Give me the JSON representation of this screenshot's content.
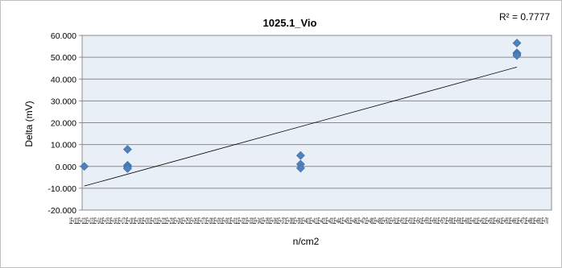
{
  "chart_data": {
    "type": "scatter",
    "title": "1025.1_Vio",
    "xlabel": "n/cm2",
    "ylabel": "Delta (mV)",
    "ylim": [
      -20,
      60
    ],
    "y_ticks": [
      "-20.000",
      "-10.000",
      "0.000",
      "10.000",
      "20.000",
      "30.000",
      "40.000",
      "50.000",
      "60.000"
    ],
    "x_tick_labels": "1E+111E+121E+131E+141E+151E+161E+171E+181E+191E+201E+211E+221E+231E+241E+251E+261E+271E+281E+291E+301E+311E+321E+331E+341E+351E+361E+371E+381E+391E+401E+411E+421E+431E+441E+451E+461E+471E+481E+491E+501E+511E+521E+531E+541E+551E+561E+571E+581E+591E+601E+611E+621E+631E+641E+651E+661E+671E+681E+691E+70",
    "grid": true,
    "points": [
      {
        "x": 0,
        "y": 0
      },
      {
        "x": 1.0,
        "y": 7.8
      },
      {
        "x": 1.0,
        "y": 0.5
      },
      {
        "x": 1.0,
        "y": -0.3
      },
      {
        "x": 1.0,
        "y": -1.0
      },
      {
        "x": 5.0,
        "y": 5.0
      },
      {
        "x": 5.0,
        "y": 1.0
      },
      {
        "x": 5.0,
        "y": -0.8
      },
      {
        "x": 10.0,
        "y": 56.5
      },
      {
        "x": 10.0,
        "y": 52.0
      },
      {
        "x": 10.0,
        "y": 51.5
      },
      {
        "x": 10.0,
        "y": 50.8
      }
    ],
    "trendline": {
      "x": [
        0,
        10
      ],
      "y": [
        -9,
        45.5
      ]
    },
    "r_squared_label": "R² = 0.7777",
    "marker_color": "#4f81bd",
    "plot_background": "#e9eff7"
  }
}
